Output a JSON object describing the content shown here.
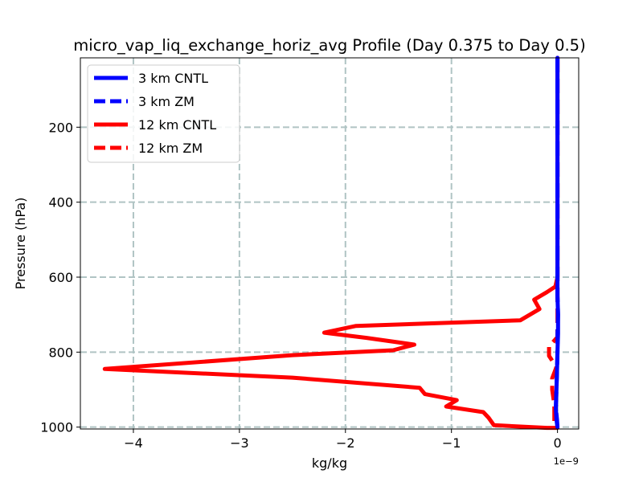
{
  "chart_data": {
    "type": "line",
    "title": "micro_vap_liq_exchange_horiz_avg Profile (Day 0.375 to Day 0.5)",
    "xlabel": "kg/kg",
    "ylabel": "Pressure (hPa)",
    "x_offset_text": "1e−9",
    "xlim": [
      -4.5,
      0.2
    ],
    "ylim": [
      1005,
      15
    ],
    "y_inverted": true,
    "xticks": [
      -4,
      -3,
      -2,
      -1,
      0
    ],
    "xtick_labels": [
      "−4",
      "−3",
      "−2",
      "−1",
      "0"
    ],
    "yticks": [
      200,
      400,
      600,
      800,
      1000
    ],
    "ytick_labels": [
      "200",
      "400",
      "600",
      "800",
      "1000"
    ],
    "grid": true,
    "legend_position": "upper-left",
    "series": [
      {
        "name": "3 km CNTL",
        "color": "#0000ff",
        "style": "solid",
        "points": [
          [
            0,
            15
          ],
          [
            0,
            200
          ],
          [
            0,
            400
          ],
          [
            0,
            600
          ],
          [
            0,
            650
          ],
          [
            0.005,
            700
          ],
          [
            0.005,
            750
          ],
          [
            0,
            800
          ],
          [
            -0.005,
            850
          ],
          [
            -0.01,
            900
          ],
          [
            -0.015,
            950
          ],
          [
            -0.01,
            980
          ],
          [
            0,
            1000
          ]
        ]
      },
      {
        "name": "3 km ZM",
        "color": "#0000ff",
        "style": "dashed",
        "points": [
          [
            0,
            15
          ],
          [
            0,
            200
          ],
          [
            0,
            400
          ],
          [
            0,
            600
          ],
          [
            0,
            650
          ],
          [
            0.005,
            700
          ],
          [
            0,
            750
          ],
          [
            0,
            800
          ],
          [
            -0.005,
            850
          ],
          [
            -0.01,
            900
          ],
          [
            -0.015,
            950
          ],
          [
            -0.005,
            980
          ],
          [
            0,
            1000
          ]
        ]
      },
      {
        "name": "12 km CNTL",
        "color": "#ff0000",
        "style": "solid",
        "points": [
          [
            0,
            15
          ],
          [
            0,
            100
          ],
          [
            0,
            200
          ],
          [
            0,
            300
          ],
          [
            0,
            400
          ],
          [
            0,
            500
          ],
          [
            0,
            600
          ],
          [
            -0.02,
            625
          ],
          [
            -0.1,
            640
          ],
          [
            -0.22,
            660
          ],
          [
            -0.17,
            685
          ],
          [
            -0.35,
            715
          ],
          [
            -1.9,
            730
          ],
          [
            -2.2,
            748
          ],
          [
            -1.8,
            762
          ],
          [
            -1.35,
            780
          ],
          [
            -1.55,
            795
          ],
          [
            -2.5,
            808
          ],
          [
            -4.27,
            845
          ],
          [
            -2.5,
            868
          ],
          [
            -1.3,
            895
          ],
          [
            -1.25,
            912
          ],
          [
            -0.95,
            928
          ],
          [
            -1.05,
            945
          ],
          [
            -0.7,
            960
          ],
          [
            -0.65,
            975
          ],
          [
            -0.6,
            995
          ],
          [
            -0.1,
            1002
          ],
          [
            0,
            1002
          ]
        ]
      },
      {
        "name": "12 km ZM",
        "color": "#ff0000",
        "style": "dashed",
        "points": [
          [
            0,
            15
          ],
          [
            0,
            200
          ],
          [
            0,
            400
          ],
          [
            0,
            600
          ],
          [
            0,
            700
          ],
          [
            0,
            760
          ],
          [
            -0.08,
            785
          ],
          [
            -0.08,
            810
          ],
          [
            -0.01,
            840
          ],
          [
            -0.05,
            870
          ],
          [
            -0.05,
            900
          ],
          [
            -0.03,
            940
          ],
          [
            -0.03,
            980
          ],
          [
            -0.03,
            1002
          ]
        ]
      }
    ]
  }
}
